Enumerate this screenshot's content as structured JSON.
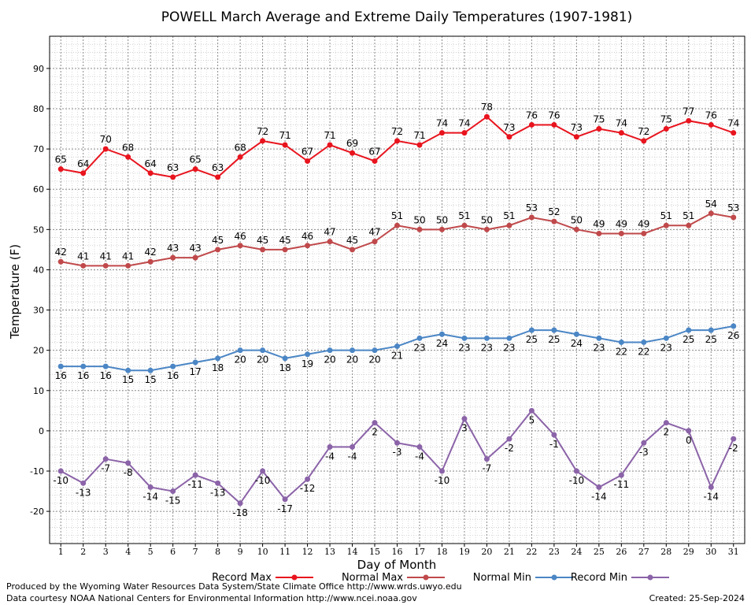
{
  "chart_data": {
    "type": "line",
    "title": "POWELL March Average and Extreme Daily Temperatures (1907-1981)",
    "xlabel": "Day of Month",
    "ylabel": "Temperature (F)",
    "x": [
      1,
      2,
      3,
      4,
      5,
      6,
      7,
      8,
      9,
      10,
      11,
      12,
      13,
      14,
      15,
      16,
      17,
      18,
      19,
      20,
      21,
      22,
      23,
      24,
      25,
      26,
      27,
      28,
      29,
      30,
      31
    ],
    "xlim": [
      0.5,
      31.5
    ],
    "ylim": [
      -28,
      98
    ],
    "yticks": [
      -20,
      -10,
      0,
      10,
      20,
      30,
      40,
      50,
      60,
      70,
      80,
      90
    ],
    "grid": true,
    "legend_placement": "bottom",
    "series": [
      {
        "name": "Record Max",
        "color": "#e8141e",
        "values": [
          65,
          64,
          70,
          68,
          64,
          63,
          65,
          63,
          68,
          72,
          71,
          67,
          71,
          69,
          67,
          72,
          71,
          74,
          74,
          78,
          73,
          76,
          76,
          73,
          75,
          74,
          72,
          75,
          77,
          76,
          74
        ],
        "label_position": "above"
      },
      {
        "name": "Normal Max",
        "color": "#c0494b",
        "values": [
          42,
          41,
          41,
          41,
          42,
          43,
          43,
          45,
          46,
          45,
          45,
          46,
          47,
          45,
          47,
          51,
          50,
          50,
          51,
          50,
          51,
          53,
          52,
          50,
          49,
          49,
          49,
          51,
          51,
          54,
          53
        ],
        "label_position": "above"
      },
      {
        "name": "Normal Min",
        "color": "#4b86c5",
        "values": [
          16,
          16,
          16,
          15,
          15,
          16,
          17,
          18,
          20,
          20,
          18,
          19,
          20,
          20,
          20,
          21,
          23,
          24,
          23,
          23,
          23,
          25,
          25,
          24,
          23,
          22,
          22,
          23,
          25,
          25,
          26
        ],
        "label_position": "below"
      },
      {
        "name": "Record Min",
        "color": "#8b63a8",
        "values": [
          -10,
          -13,
          -7,
          -8,
          -14,
          -15,
          -11,
          -13,
          -18,
          -10,
          -17,
          -12,
          -4,
          -4,
          2,
          -3,
          -4,
          -10,
          3,
          -7,
          -2,
          5,
          -1,
          -10,
          -14,
          -11,
          -3,
          2,
          0,
          -14,
          -2
        ],
        "label_position": "below"
      }
    ]
  },
  "footer": {
    "produced_by": "Produced by the Wyoming Water Resources Data System/State Climate Office http://www.wrds.uwyo.edu",
    "data_courtesy": "Data courtesy NOAA National Centers for Environmental Information http://www.ncei.noaa.gov",
    "created": "Created:  25-Sep-2024"
  }
}
